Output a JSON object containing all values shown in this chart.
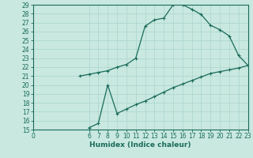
{
  "xlabel": "Humidex (Indice chaleur)",
  "xlim": [
    0,
    23
  ],
  "ylim": [
    15,
    29
  ],
  "xticks": [
    0,
    6,
    7,
    8,
    9,
    10,
    11,
    12,
    13,
    14,
    15,
    16,
    17,
    18,
    19,
    20,
    21,
    22,
    23
  ],
  "yticks": [
    15,
    16,
    17,
    18,
    19,
    20,
    21,
    22,
    23,
    24,
    25,
    26,
    27,
    28,
    29
  ],
  "bg_color": "#c8e8e0",
  "line_color": "#1a6b5a",
  "grid_color": "#b0d8d0",
  "line1_x": [
    5,
    6,
    7,
    8,
    9,
    10,
    11,
    12,
    13,
    14,
    15,
    16,
    17,
    18,
    19,
    20,
    21,
    22,
    23
  ],
  "line1_y": [
    21.0,
    21.2,
    21.4,
    21.6,
    22.0,
    22.3,
    23.0,
    26.6,
    27.3,
    27.5,
    29.0,
    29.0,
    28.5,
    27.9,
    26.7,
    26.2,
    25.5,
    23.3,
    22.2
  ],
  "line2_x": [
    6,
    7,
    8,
    9,
    10,
    11,
    12,
    13,
    14,
    15,
    16,
    17,
    18,
    19,
    20,
    21,
    22,
    23
  ],
  "line2_y": [
    15.2,
    15.7,
    20.0,
    16.8,
    17.3,
    17.8,
    18.2,
    18.7,
    19.2,
    19.7,
    20.1,
    20.5,
    20.9,
    21.3,
    21.5,
    21.7,
    21.9,
    22.2
  ],
  "marker_size": 3,
  "tick_fontsize": 5.5,
  "xlabel_fontsize": 6.5,
  "tick_color": "#1a6b5a",
  "spine_color": "#1a6b5a"
}
